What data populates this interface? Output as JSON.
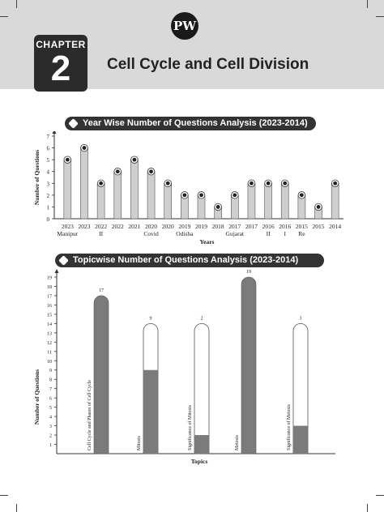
{
  "header": {
    "logo_text": "PW",
    "chapter_label": "CHAPTER",
    "chapter_number": "2",
    "title": "Cell Cycle and Cell Division"
  },
  "chart1": {
    "banner": "Year Wise Number of Questions Analysis (2023-2014)"
  },
  "chart2": {
    "banner": "Topicwise Number of Questions Analysis (2023-2014)"
  },
  "chart_data": [
    {
      "type": "bar",
      "title": "Year Wise Number of Questions Analysis (2023-2014)",
      "xlabel": "Years",
      "ylabel": "Number of Questions",
      "ylim": [
        0,
        7
      ],
      "yticks": [
        0,
        1,
        2,
        3,
        4,
        5,
        6,
        7
      ],
      "categories": [
        {
          "year": "2023",
          "sub": "Manipur"
        },
        {
          "year": "2023",
          "sub": ""
        },
        {
          "year": "2022",
          "sub": "II"
        },
        {
          "year": "2022",
          "sub": ""
        },
        {
          "year": "2021",
          "sub": ""
        },
        {
          "year": "2020",
          "sub": "Covid"
        },
        {
          "year": "2020",
          "sub": ""
        },
        {
          "year": "2019",
          "sub": "Odisha"
        },
        {
          "year": "2019",
          "sub": ""
        },
        {
          "year": "2018",
          "sub": ""
        },
        {
          "year": "2017",
          "sub": "Gujarat"
        },
        {
          "year": "2017",
          "sub": ""
        },
        {
          "year": "2016",
          "sub": "II"
        },
        {
          "year": "2016",
          "sub": "I"
        },
        {
          "year": "2015",
          "sub": "Re"
        },
        {
          "year": "2015",
          "sub": ""
        },
        {
          "year": "2014",
          "sub": ""
        }
      ],
      "values": [
        5,
        6,
        3,
        4,
        5,
        4,
        3,
        2,
        2,
        1,
        2,
        3,
        3,
        3,
        2,
        1,
        3
      ]
    },
    {
      "type": "bar",
      "title": "Topicwise Number of Questions Analysis (2023-2014)",
      "xlabel": "Topics",
      "ylabel": "Number of Questions",
      "ylim": [
        0,
        19
      ],
      "yticks": [
        1,
        2,
        3,
        4,
        5,
        6,
        7,
        8,
        9,
        10,
        11,
        12,
        13,
        14,
        15,
        16,
        17,
        18,
        19
      ],
      "categories": [
        "Cell Cycle and Phases of Cell Cycle",
        "Mitosis",
        "Significance of Mitosis",
        "Meiosis",
        "Significance of Meiosis"
      ],
      "values": [
        17,
        9,
        2,
        19,
        3
      ]
    }
  ]
}
